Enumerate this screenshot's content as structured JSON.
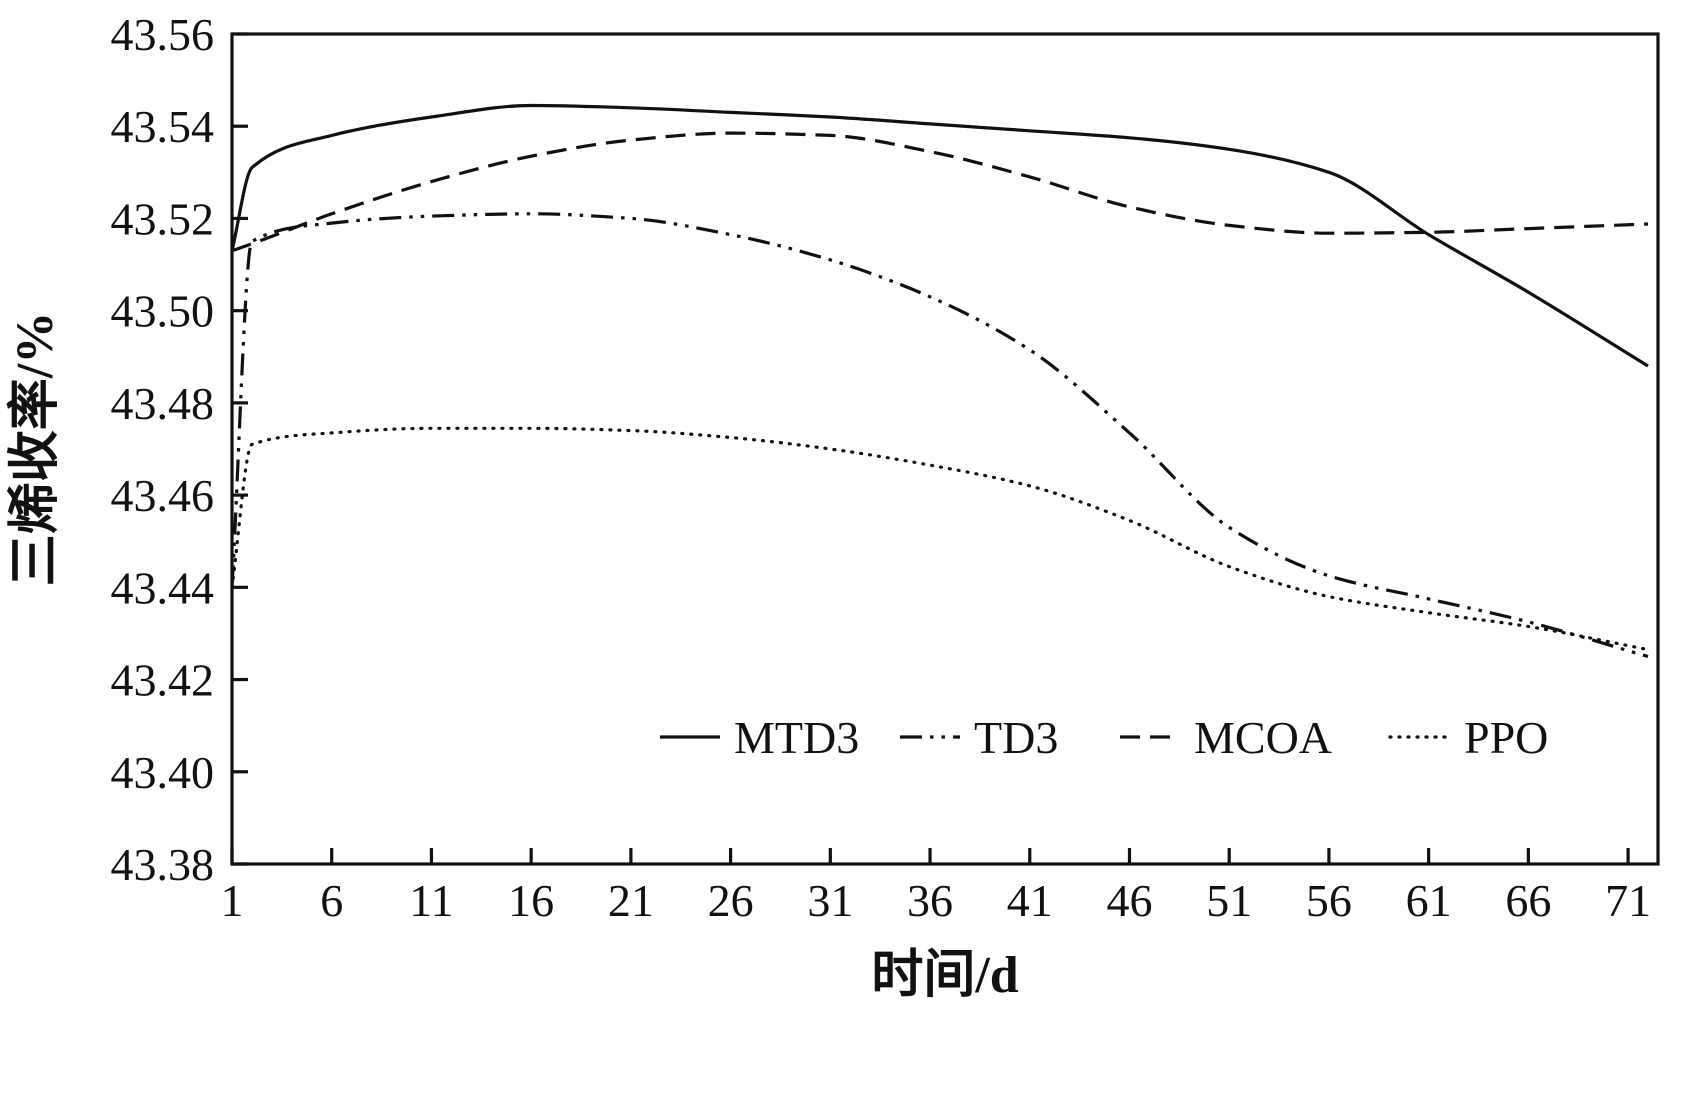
{
  "chart_data": {
    "type": "line",
    "title": "",
    "xlabel": "时间/d",
    "ylabel": "三烯收率/%",
    "xlim": [
      1,
      72.5
    ],
    "ylim": [
      43.38,
      43.56
    ],
    "x_ticks": [
      1,
      6,
      11,
      16,
      21,
      26,
      31,
      36,
      41,
      46,
      51,
      56,
      61,
      66,
      71
    ],
    "y_ticks": [
      43.38,
      43.4,
      43.42,
      43.44,
      43.46,
      43.48,
      43.5,
      43.52,
      43.54,
      43.56
    ],
    "grid": false,
    "legend_position": "inside-bottom",
    "line_color": "#111111",
    "x": [
      1,
      2,
      6,
      11,
      16,
      21,
      26,
      31,
      36,
      41,
      46,
      51,
      56,
      61,
      66,
      72
    ],
    "series": [
      {
        "name": "MTD3",
        "style": "solid",
        "values": [
          43.513,
          43.531,
          43.538,
          43.542,
          43.5445,
          43.544,
          43.543,
          43.542,
          43.5405,
          43.539,
          43.5375,
          43.535,
          43.53,
          43.5165,
          43.504,
          43.488
        ]
      },
      {
        "name": "TD3",
        "style": "dashdotdot",
        "values": [
          43.44,
          43.515,
          43.519,
          43.5205,
          43.521,
          43.52,
          43.5165,
          43.511,
          43.503,
          43.4915,
          43.4735,
          43.453,
          43.4425,
          43.4375,
          43.4325,
          43.425
        ]
      },
      {
        "name": "MCOA",
        "style": "dashed",
        "values": [
          43.513,
          43.5145,
          43.521,
          43.528,
          43.5335,
          43.537,
          43.5385,
          43.538,
          43.5345,
          43.529,
          43.5225,
          43.5185,
          43.5168,
          43.517,
          43.5178,
          43.5188
        ]
      },
      {
        "name": "PPO",
        "style": "dotted",
        "values": [
          43.44,
          43.471,
          43.4735,
          43.4745,
          43.4745,
          43.474,
          43.4725,
          43.47,
          43.4665,
          43.462,
          43.4545,
          43.4445,
          43.438,
          43.4345,
          43.4315,
          43.4265
        ]
      }
    ]
  }
}
